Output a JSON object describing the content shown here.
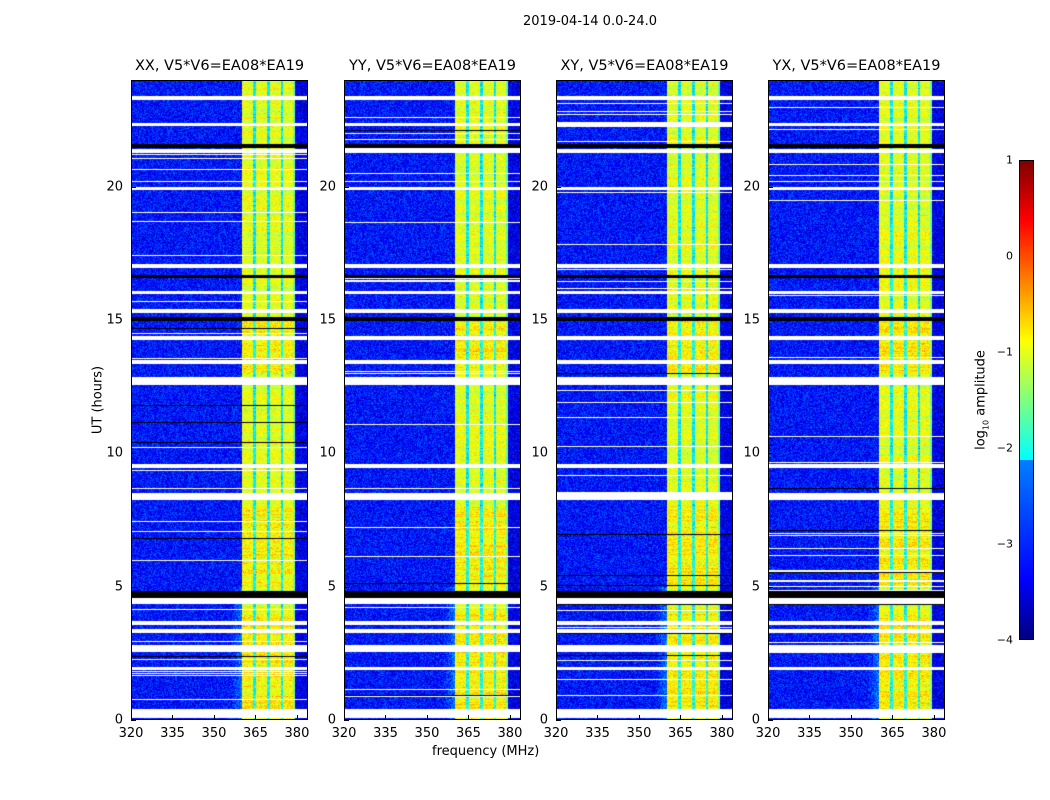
{
  "chart_data": {
    "type": "heatmap",
    "title": "2019-04-14 0.0-24.0",
    "xlabel": "frequency (MHz)",
    "ylabel": "UT (hours)",
    "xlim": [
      320,
      384
    ],
    "ylim": [
      0,
      24
    ],
    "xticks": [
      "320",
      "335",
      "350",
      "365",
      "380"
    ],
    "yticks": [
      "0",
      "5",
      "10",
      "15",
      "20"
    ],
    "panels": [
      {
        "title": "XX, V5*V6=EA08*EA19"
      },
      {
        "title": "YY, V5*V6=EA08*EA19"
      },
      {
        "title": "XY, V5*V6=EA08*EA19"
      },
      {
        "title": "YX, V5*V6=EA08*EA19"
      }
    ],
    "colorbar": {
      "label_main": "log",
      "label_sub": "10",
      "label_rest": " amplitude",
      "range": [
        -4,
        1
      ],
      "ticks": [
        "1",
        "0",
        "−1",
        "−2",
        "−3",
        "−4"
      ],
      "colormap": "jet"
    },
    "background_level": -3.3,
    "band_mhz": [
      360,
      379
    ],
    "band_level": -1.0,
    "band_dips_mhz": [
      364.5,
      369.5,
      374.5
    ],
    "flagged_hours": [
      [
        0.1,
        0.25
      ],
      [
        0.3,
        0.4
      ],
      [
        1.9,
        2.0
      ],
      [
        2.6,
        2.8
      ],
      [
        3.3,
        3.4
      ],
      [
        3.6,
        3.7
      ],
      [
        4.4,
        4.6
      ],
      [
        8.3,
        8.5
      ],
      [
        9.5,
        9.6
      ],
      [
        12.6,
        12.85
      ],
      [
        13.4,
        13.5
      ],
      [
        14.3,
        14.4
      ],
      [
        15.3,
        15.4
      ],
      [
        16.0,
        16.1
      ],
      [
        17.0,
        17.1
      ],
      [
        19.9,
        20.0
      ],
      [
        21.3,
        21.4
      ],
      [
        22.3,
        22.4
      ],
      [
        23.3,
        23.4
      ]
    ],
    "dead_hours": [
      [
        4.6,
        4.85
      ],
      [
        15.0,
        15.1
      ],
      [
        16.6,
        16.7
      ],
      [
        21.5,
        21.6
      ]
    ]
  }
}
